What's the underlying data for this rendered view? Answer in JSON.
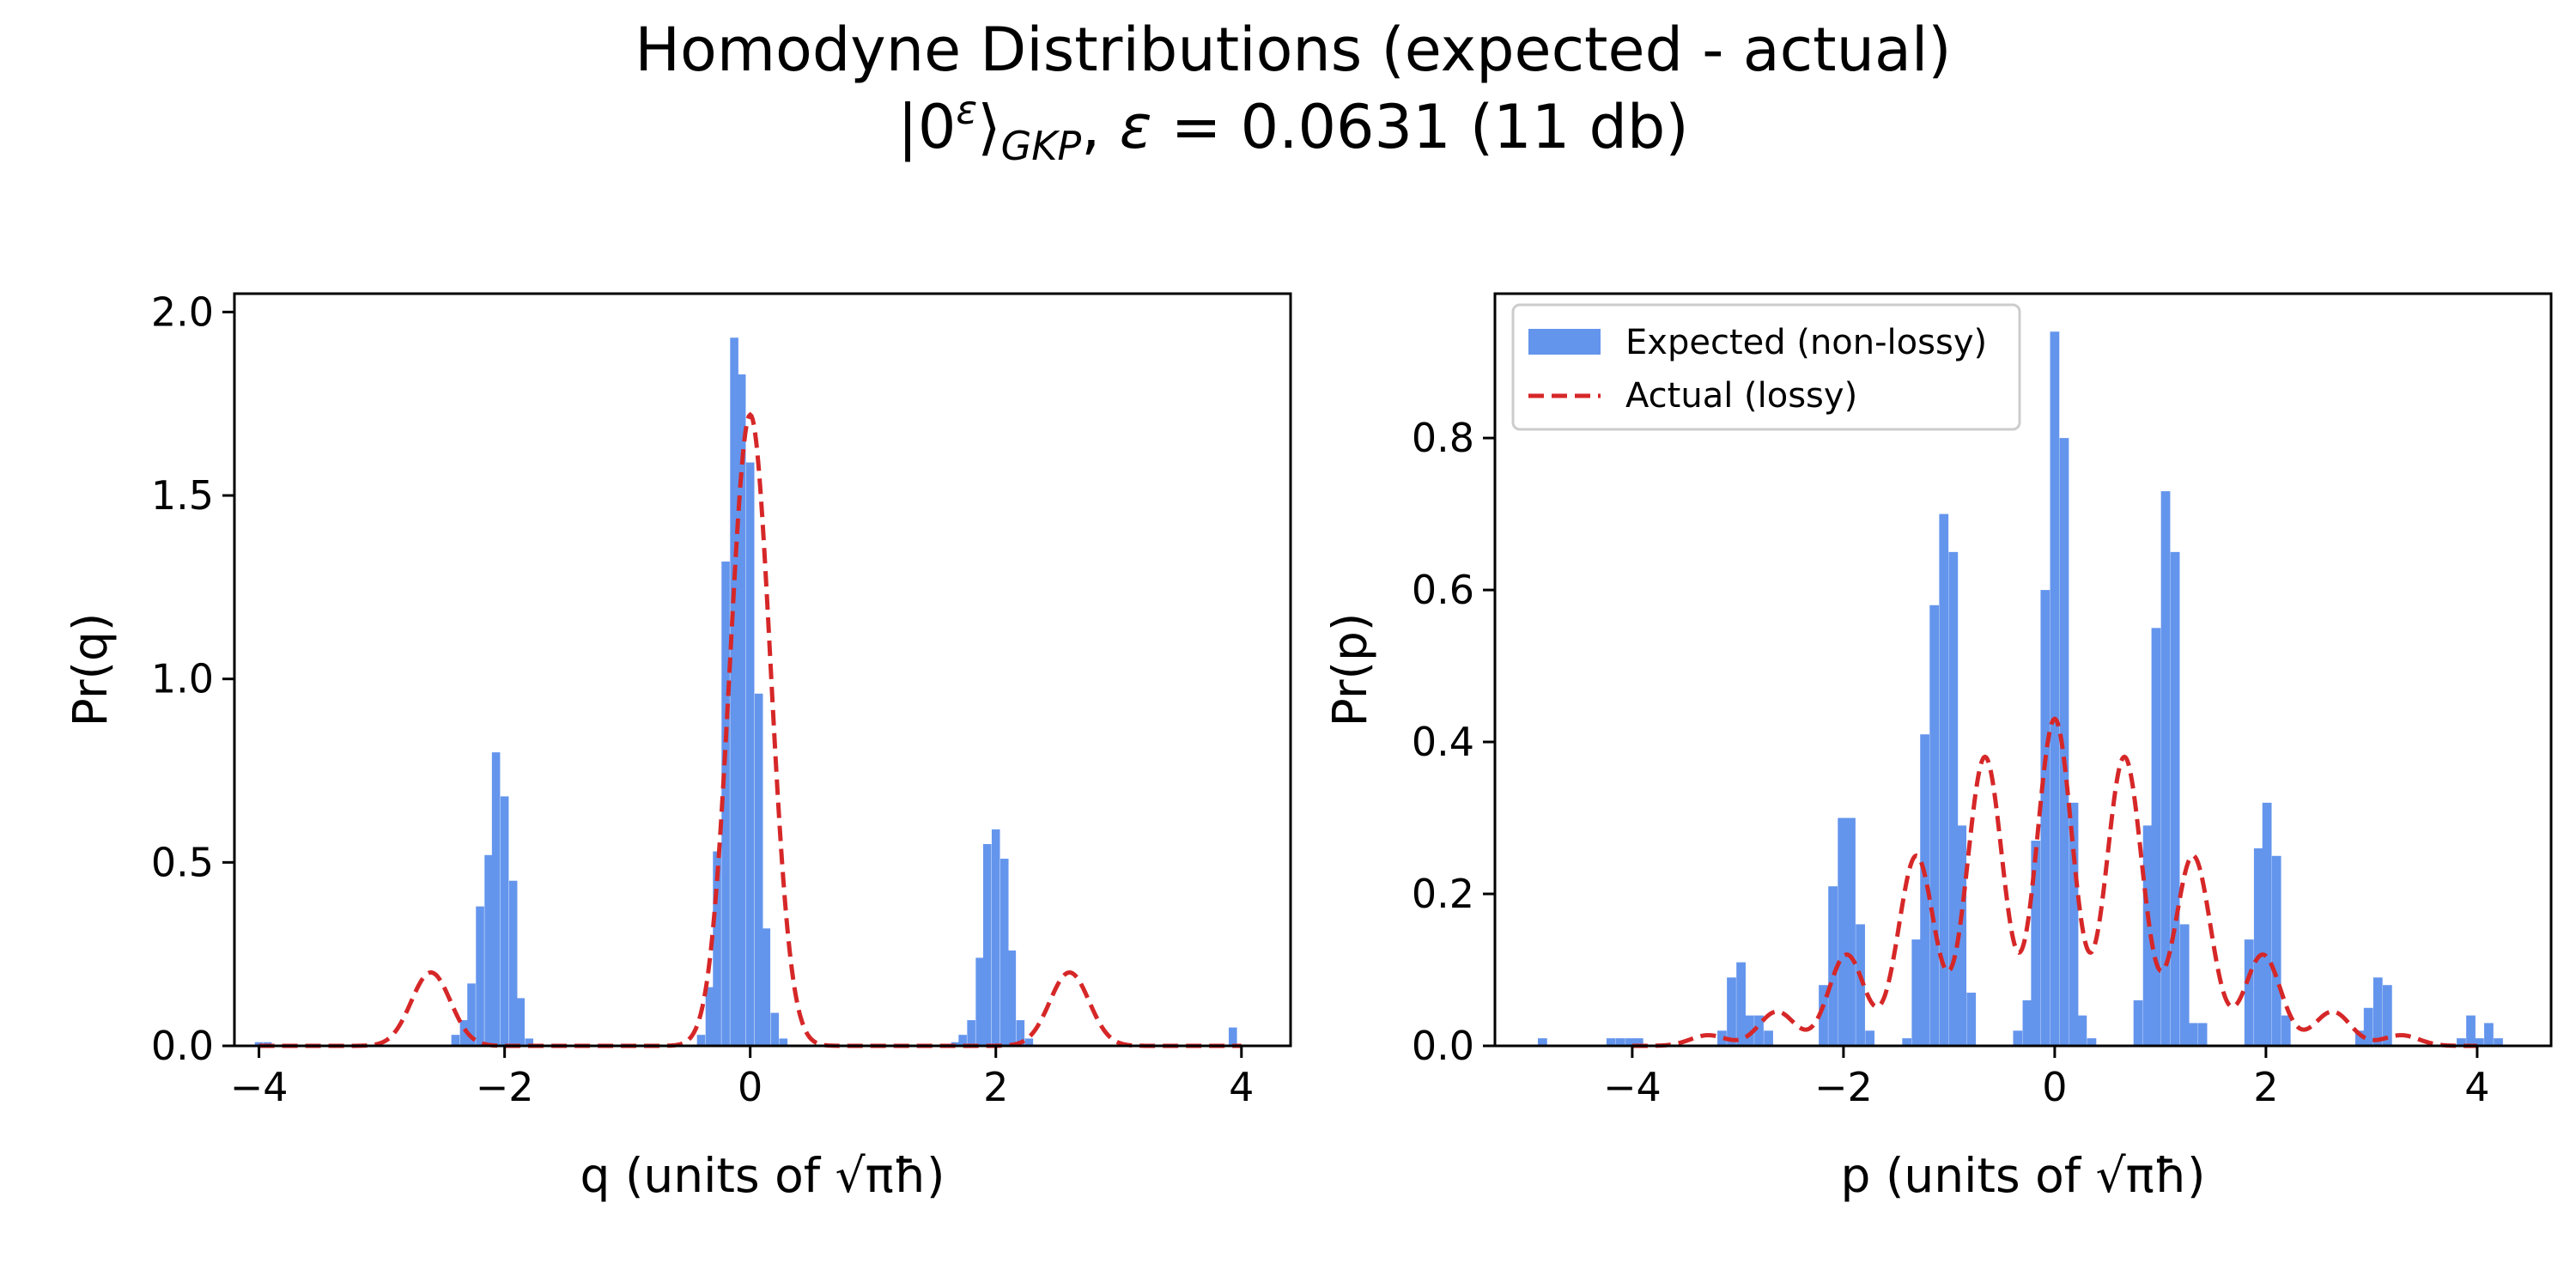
{
  "figure": {
    "title_line1": "Homodyne Distributions (expected - actual)",
    "title_line2": "|0ᵋ⟩GKP, ε = 0.0631 (11 db)"
  },
  "colors": {
    "hist": "#6495ed",
    "curve": "#d62728",
    "axis": "#000000"
  },
  "chart_data": [
    {
      "type": "bar",
      "title": "",
      "xlabel": "q (units of √πħ)",
      "ylabel": "Pr(q)",
      "xlim": [
        -4.2,
        4.4
      ],
      "ylim": [
        0,
        2.05
      ],
      "xticks": [
        -4,
        -2,
        0,
        2,
        4
      ],
      "yticks": [
        0.0,
        0.5,
        1.0,
        1.5,
        2.0
      ],
      "xtick_labels": [
        "−4",
        "−2",
        "0",
        "2",
        "4"
      ],
      "ytick_labels": [
        "0.0",
        "0.5",
        "1.0",
        "1.5",
        "2.0"
      ],
      "grid": false,
      "series": [
        {
          "name": "Expected (non-lossy)",
          "kind": "histogram",
          "bin_width": 0.067,
          "bins": [
            [
              -4.0,
              0.01
            ],
            [
              -3.93,
              0.01
            ],
            [
              -2.4,
              0.03
            ],
            [
              -2.33,
              0.07
            ],
            [
              -2.27,
              0.17
            ],
            [
              -2.2,
              0.38
            ],
            [
              -2.13,
              0.52
            ],
            [
              -2.07,
              0.8
            ],
            [
              -2.0,
              0.68
            ],
            [
              -1.93,
              0.45
            ],
            [
              -1.87,
              0.13
            ],
            [
              -1.8,
              0.02
            ],
            [
              -0.4,
              0.03
            ],
            [
              -0.33,
              0.16
            ],
            [
              -0.27,
              0.53
            ],
            [
              -0.2,
              1.32
            ],
            [
              -0.13,
              1.93
            ],
            [
              -0.07,
              1.83
            ],
            [
              0.0,
              1.59
            ],
            [
              0.07,
              0.96
            ],
            [
              0.13,
              0.32
            ],
            [
              0.2,
              0.09
            ],
            [
              0.27,
              0.02
            ],
            [
              1.67,
              0.01
            ],
            [
              1.73,
              0.03
            ],
            [
              1.8,
              0.07
            ],
            [
              1.87,
              0.24
            ],
            [
              1.93,
              0.55
            ],
            [
              2.0,
              0.59
            ],
            [
              2.07,
              0.51
            ],
            [
              2.13,
              0.26
            ],
            [
              2.2,
              0.07
            ],
            [
              2.27,
              0.02
            ],
            [
              3.93,
              0.05
            ]
          ]
        },
        {
          "name": "Actual (lossy)",
          "kind": "gaussian-mixture-curve",
          "components": [
            {
              "center": 0.0,
              "amplitude": 1.72,
              "sigma": 0.165
            },
            {
              "center": -2.6,
              "amplitude": 0.2,
              "sigma": 0.16
            },
            {
              "center": 2.6,
              "amplitude": 0.2,
              "sigma": 0.16
            }
          ],
          "x_range": [
            -4.0,
            4.0
          ]
        }
      ]
    },
    {
      "type": "bar",
      "title": "",
      "xlabel": "p (units of √πħ)",
      "ylabel": "Pr(p)",
      "xlim": [
        -5.3,
        4.7
      ],
      "ylim": [
        0,
        0.99
      ],
      "xticks": [
        -4,
        -2,
        0,
        2,
        4
      ],
      "yticks": [
        0.0,
        0.2,
        0.4,
        0.6,
        0.8
      ],
      "xtick_labels": [
        "−4",
        "−2",
        "0",
        "2",
        "4"
      ],
      "ytick_labels": [
        "0.0",
        "0.2",
        "0.4",
        "0.6",
        "0.8"
      ],
      "grid": false,
      "legend": {
        "position": "upper-left",
        "entries": [
          {
            "label": "Expected (non-lossy)",
            "style": "patch"
          },
          {
            "label": "Actual (lossy)",
            "style": "dashed-line"
          }
        ]
      },
      "series": [
        {
          "name": "Expected (non-lossy)",
          "kind": "histogram",
          "bin_width": 0.0875,
          "bins": [
            [
              -4.85,
              0.01
            ],
            [
              -4.2,
              0.01
            ],
            [
              -4.11,
              0.01
            ],
            [
              -4.02,
              0.01
            ],
            [
              -3.94,
              0.01
            ],
            [
              -3.15,
              0.02
            ],
            [
              -3.06,
              0.09
            ],
            [
              -2.97,
              0.11
            ],
            [
              -2.89,
              0.04
            ],
            [
              -2.8,
              0.04
            ],
            [
              -2.71,
              0.02
            ],
            [
              -2.19,
              0.08
            ],
            [
              -2.1,
              0.21
            ],
            [
              -2.01,
              0.3
            ],
            [
              -1.93,
              0.3
            ],
            [
              -1.84,
              0.16
            ],
            [
              -1.75,
              0.02
            ],
            [
              -1.4,
              0.01
            ],
            [
              -1.31,
              0.14
            ],
            [
              -1.23,
              0.41
            ],
            [
              -1.14,
              0.58
            ],
            [
              -1.05,
              0.7
            ],
            [
              -0.96,
              0.65
            ],
            [
              -0.88,
              0.29
            ],
            [
              -0.79,
              0.07
            ],
            [
              -0.35,
              0.02
            ],
            [
              -0.26,
              0.06
            ],
            [
              -0.18,
              0.27
            ],
            [
              -0.09,
              0.6
            ],
            [
              0.0,
              0.94
            ],
            [
              0.09,
              0.8
            ],
            [
              0.18,
              0.32
            ],
            [
              0.26,
              0.04
            ],
            [
              0.35,
              0.01
            ],
            [
              0.79,
              0.06
            ],
            [
              0.88,
              0.29
            ],
            [
              0.96,
              0.55
            ],
            [
              1.05,
              0.73
            ],
            [
              1.14,
              0.65
            ],
            [
              1.23,
              0.16
            ],
            [
              1.31,
              0.03
            ],
            [
              1.4,
              0.03
            ],
            [
              1.84,
              0.14
            ],
            [
              1.93,
              0.26
            ],
            [
              2.01,
              0.32
            ],
            [
              2.1,
              0.25
            ],
            [
              2.19,
              0.04
            ],
            [
              2.89,
              0.02
            ],
            [
              2.97,
              0.05
            ],
            [
              3.06,
              0.09
            ],
            [
              3.15,
              0.08
            ],
            [
              3.85,
              0.01
            ],
            [
              3.94,
              0.04
            ],
            [
              4.02,
              0.01
            ],
            [
              4.11,
              0.03
            ],
            [
              4.2,
              0.01
            ]
          ]
        },
        {
          "name": "Actual (lossy)",
          "kind": "gaussian-mixture-curve",
          "baseline": 0.0,
          "components": [
            {
              "center": 0.0,
              "amplitude": 0.43,
              "sigma": 0.17
            },
            {
              "center": -0.66,
              "amplitude": 0.38,
              "sigma": 0.17
            },
            {
              "center": 0.66,
              "amplitude": 0.38,
              "sigma": 0.17
            },
            {
              "center": -1.31,
              "amplitude": 0.25,
              "sigma": 0.17
            },
            {
              "center": 1.31,
              "amplitude": 0.25,
              "sigma": 0.17
            },
            {
              "center": -1.97,
              "amplitude": 0.12,
              "sigma": 0.17
            },
            {
              "center": 1.97,
              "amplitude": 0.12,
              "sigma": 0.17
            },
            {
              "center": -2.63,
              "amplitude": 0.045,
              "sigma": 0.17
            },
            {
              "center": 2.63,
              "amplitude": 0.045,
              "sigma": 0.17
            },
            {
              "center": -3.28,
              "amplitude": 0.014,
              "sigma": 0.17
            },
            {
              "center": 3.28,
              "amplitude": 0.014,
              "sigma": 0.17
            }
          ],
          "x_range": [
            -4.0,
            4.0
          ]
        }
      ]
    }
  ]
}
